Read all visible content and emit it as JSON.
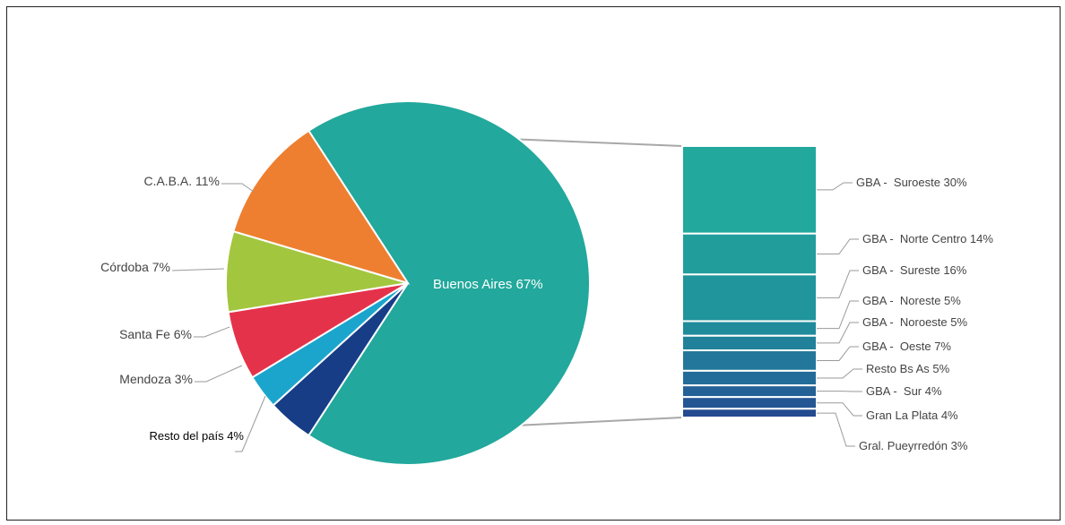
{
  "chart_data": [
    {
      "type": "pie",
      "slices": [
        {
          "label": "Buenos Aires 67%",
          "value": 67,
          "color": "#22a89c"
        },
        {
          "label": "C.A.B.A. 11%",
          "value": 11,
          "color": "#ee7f30"
        },
        {
          "label": "Córdoba 7%",
          "value": 7,
          "color": "#a3c63f"
        },
        {
          "label": "Santa Fe 6%",
          "value": 6,
          "color": "#e5324b"
        },
        {
          "label": "Mendoza 3%",
          "value": 3,
          "color": "#1ba5cd"
        },
        {
          "label": "Resto del país 4%",
          "value": 4,
          "color": "#173d87"
        }
      ]
    },
    {
      "type": "bar",
      "stacked": true,
      "segments": [
        {
          "label": "GBA -  Suroeste 30%",
          "value": 30,
          "color": "#22a89c"
        },
        {
          "label": "GBA -  Norte Centro 14%",
          "value": 14,
          "color": "#219e9b"
        },
        {
          "label": "GBA -  Sureste 16%",
          "value": 16,
          "color": "#20959b"
        },
        {
          "label": "GBA -  Noreste 5%",
          "value": 5,
          "color": "#208b9b"
        },
        {
          "label": "GBA -  Noroeste 5%",
          "value": 5,
          "color": "#21819a"
        },
        {
          "label": "GBA -  Oeste 7%",
          "value": 7,
          "color": "#22779a"
        },
        {
          "label": "Resto Bs As 5%",
          "value": 5,
          "color": "#236c99"
        },
        {
          "label": "GBA -  Sur 4%",
          "value": 4,
          "color": "#236196"
        },
        {
          "label": "Gran La Plata 4%",
          "value": 4,
          "color": "#245693"
        },
        {
          "label": "Gral. Pueyrredón 3%",
          "value": 3,
          "color": "#244a8f"
        }
      ]
    }
  ]
}
